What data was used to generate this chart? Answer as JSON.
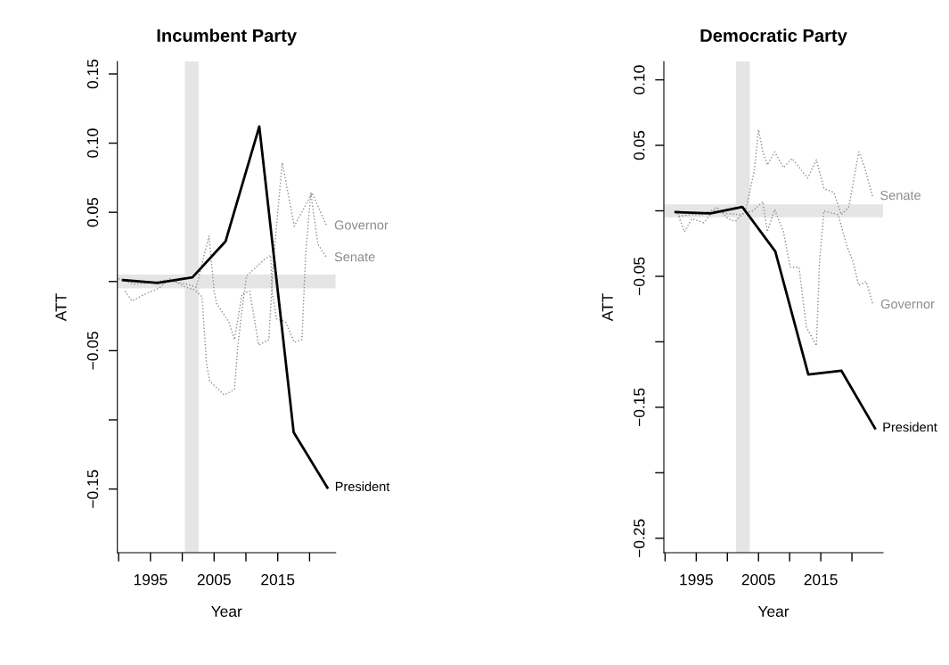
{
  "chart_data": [
    {
      "type": "line",
      "title": "Incumbent Party",
      "xlabel": "Year",
      "ylabel": "ATT",
      "xlim": [
        1989.8,
        2024.1
      ],
      "ylim": [
        -0.196,
        0.159
      ],
      "xticks": [
        {
          "value": 1990,
          "label": null
        },
        1995,
        {
          "value": 2000,
          "label": null
        },
        2005,
        {
          "value": 2010,
          "label": null
        },
        2015,
        {
          "value": 2020,
          "label": null
        }
      ],
      "yticks": [
        {
          "value": -0.15,
          "label": "−0.15"
        },
        {
          "value": -0.1,
          "label": null
        },
        {
          "value": -0.05,
          "label": "−0.05"
        },
        {
          "value": 0,
          "label": null
        },
        {
          "value": 0.05,
          "label": "0.05"
        },
        {
          "value": 0.1,
          "label": "0.10"
        },
        {
          "value": 0.15,
          "label": "0.15"
        }
      ],
      "grid": false,
      "legend": false,
      "bands": [
        {
          "axis": "x",
          "from": 2000.4,
          "to": 2002.6,
          "color": "#e5e5e5"
        },
        {
          "axis": "y",
          "from": -0.005,
          "to": 0.005,
          "color": "#e5e5e5"
        }
      ],
      "series": [
        {
          "name": "Governor",
          "color": "#8c8c8c",
          "line_style": "dotted",
          "x": [
            1990.0,
            1992.4,
            1994.7,
            1997.5,
            2000.8,
            2002.2,
            2004.2,
            2005.0,
            2005.4,
            2007.3,
            2008.2,
            2009.4,
            2010.6,
            2012.0,
            2013.6,
            2014.3,
            2015.7,
            2017.6,
            2020.4,
            2022.7
          ],
          "values": [
            0.002,
            -0.002,
            -0.001,
            0.001,
            -0.002,
            -0.004,
            0.033,
            -0.007,
            -0.016,
            -0.029,
            -0.042,
            -0.009,
            -0.007,
            -0.046,
            -0.042,
            0.014,
            0.086,
            0.04,
            0.064,
            0.04
          ]
        },
        {
          "name": "Senate",
          "color": "#8c8c8c",
          "line_style": "dotted",
          "x": [
            1991.0,
            1992.1,
            1994.2,
            1996.3,
            1998.0,
            2000.5,
            2001.9,
            2003.1,
            2003.8,
            2004.3,
            2006.6,
            2008.2,
            2008.7,
            2009.4,
            2010.1,
            2012.9,
            2013.9,
            2014.1,
            2014.8,
            2016.2,
            2017.6,
            2018.8,
            2019.2,
            2019.4,
            2020.2,
            2021.3,
            2022.7
          ],
          "values": [
            -0.007,
            -0.014,
            -0.009,
            -0.005,
            0.002,
            -0.004,
            -0.006,
            -0.011,
            -0.059,
            -0.072,
            -0.082,
            -0.078,
            -0.048,
            -0.02,
            0.004,
            0.016,
            0.019,
            -0.007,
            -0.027,
            -0.029,
            -0.044,
            -0.042,
            0.001,
            0.021,
            0.064,
            0.027,
            0.017
          ]
        },
        {
          "name": "President",
          "color": "#000000",
          "line_style": "solid",
          "x": [
            1990.7,
            1996.1,
            2001.6,
            2006.8,
            2012.1,
            2017.5,
            2022.8
          ],
          "values": [
            0.001,
            -0.001,
            0.003,
            0.029,
            0.112,
            -0.109,
            -0.149
          ]
        }
      ]
    },
    {
      "type": "line",
      "title": "Democratic Party",
      "xlabel": "Year",
      "ylabel": "ATT",
      "xlim": [
        1989.8,
        2025.0
      ],
      "ylim": [
        -0.261,
        0.114
      ],
      "xticks": [
        {
          "value": 1990,
          "label": null
        },
        1995,
        {
          "value": 2000,
          "label": null
        },
        2005,
        {
          "value": 2010,
          "label": null
        },
        2015,
        {
          "value": 2020,
          "label": null
        }
      ],
      "yticks": [
        {
          "value": -0.25,
          "label": "−0.25"
        },
        {
          "value": -0.2,
          "label": null
        },
        {
          "value": -0.15,
          "label": "−0.15"
        },
        {
          "value": -0.1,
          "label": null
        },
        {
          "value": -0.05,
          "label": "−0.05"
        },
        {
          "value": 0,
          "label": null
        },
        {
          "value": 0.05,
          "label": "0.05"
        },
        {
          "value": 0.1,
          "label": "0.10"
        }
      ],
      "grid": false,
      "legend": false,
      "bands": [
        {
          "axis": "x",
          "from": 2001.4,
          "to": 2003.6,
          "color": "#e5e5e5"
        },
        {
          "axis": "y",
          "from": -0.005,
          "to": 0.005,
          "color": "#e5e5e5"
        }
      ],
      "series": [
        {
          "name": "Senate",
          "color": "#8c8c8c",
          "line_style": "dotted",
          "x": [
            1992.0,
            1993.1,
            1994.3,
            1996.2,
            1998.3,
            2000.1,
            2001.3,
            2002.9,
            2004.3,
            2005.0,
            2005.7,
            2006.4,
            2007.6,
            2009.0,
            2010.4,
            2012.9,
            2014.3,
            2015.5,
            2017.1,
            2018.3,
            2019.5,
            2021.1,
            2022.0,
            2023.3
          ],
          "values": [
            -0.002,
            -0.016,
            -0.006,
            -0.009,
            0.003,
            -0.006,
            -0.008,
            0.0,
            0.03,
            0.062,
            0.045,
            0.035,
            0.045,
            0.033,
            0.04,
            0.025,
            0.039,
            0.017,
            0.014,
            -0.003,
            0.003,
            0.045,
            0.034,
            0.011
          ]
        },
        {
          "name": "Governor",
          "color": "#8c8c8c",
          "line_style": "dotted",
          "x": [
            1992.2,
            1994.1,
            1995.9,
            1997.8,
            1999.7,
            2002.0,
            2004.1,
            2005.7,
            2006.4,
            2007.6,
            2009.0,
            2010.1,
            2011.5,
            2012.7,
            2014.3,
            2014.8,
            2015.5,
            2017.8,
            2019.2,
            2020.2,
            2021.1,
            2022.3,
            2023.4
          ],
          "values": [
            -0.004,
            -0.003,
            -0.003,
            0.001,
            -0.002,
            -0.003,
            0.0,
            0.007,
            -0.016,
            0.001,
            -0.016,
            -0.043,
            -0.043,
            -0.089,
            -0.103,
            -0.039,
            0.0,
            -0.003,
            -0.027,
            -0.039,
            -0.057,
            -0.054,
            -0.072
          ]
        },
        {
          "name": "President",
          "color": "#000000",
          "line_style": "solid",
          "x": [
            1991.7,
            1997.3,
            2002.4,
            2007.7,
            2013.0,
            2018.3,
            2023.7
          ],
          "values": [
            -0.001,
            -0.002,
            0.003,
            -0.031,
            -0.125,
            -0.122,
            -0.166
          ]
        }
      ]
    }
  ]
}
